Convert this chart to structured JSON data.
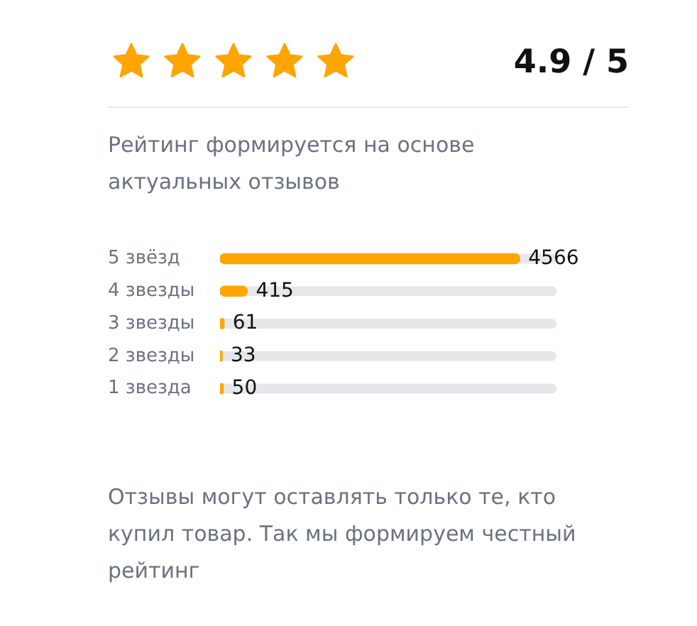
{
  "chart_data": {
    "type": "bar",
    "orientation": "horizontal",
    "title": "4.9 / 5",
    "subtitle": "Рейтинг формируется на основе актуальных отзывов",
    "categories": [
      "5 звёзд",
      "4 звезды",
      "3 звезды",
      "2 звезды",
      "1 звезда"
    ],
    "values": [
      4566,
      415,
      61,
      33,
      50
    ],
    "color": "#ffa500",
    "xlim": [
      0,
      5125
    ],
    "data_labels": true,
    "tick_labels": "y",
    "annotations": [
      "Отзывы могут оставлять только те, кто купил товар. Так мы формируем честный рейтинг"
    ]
  }
}
